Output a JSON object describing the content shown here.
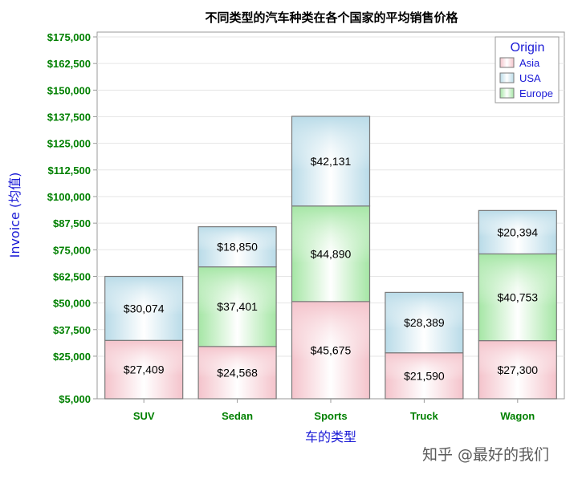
{
  "chart_data": {
    "type": "bar",
    "stacked": true,
    "title": "不同类型的汽车种类在各个国家的平均销售价格",
    "xlabel": "车的类型",
    "ylabel": "Invoice (均值)",
    "categories": [
      "SUV",
      "Sedan",
      "Sports",
      "Truck",
      "Wagon"
    ],
    "ylim": [
      5000,
      175000
    ],
    "yticks": [
      "$5,000",
      "$25,000",
      "$37,500",
      "$50,000",
      "$62,500",
      "$75,000",
      "$87,500",
      "$100,000",
      "$112,500",
      "$125,000",
      "$137,500",
      "$150,000",
      "$162,500",
      "$175,000"
    ],
    "ytick_values": [
      5000,
      25000,
      37500,
      50000,
      62500,
      75000,
      87500,
      100000,
      112500,
      125000,
      137500,
      150000,
      162500,
      175000
    ],
    "series": [
      {
        "name": "Asia",
        "values": [
          27409,
          24568,
          45675,
          21590,
          27300
        ],
        "labels": [
          "$27,409",
          "$24,568",
          "$45,675",
          "$21,590",
          "$27,300"
        ]
      },
      {
        "name": "Europe",
        "values": [
          null,
          37401,
          44890,
          null,
          40753
        ],
        "labels": [
          "",
          "$37,401",
          "$44,890",
          "",
          "$40,753"
        ]
      },
      {
        "name": "USA",
        "values": [
          30074,
          18850,
          42131,
          28389,
          20394
        ],
        "labels": [
          "$30,074",
          "$18,850",
          "$42,131",
          "$28,389",
          "$20,394"
        ]
      }
    ],
    "legend": {
      "title": "Origin",
      "position": "top-right",
      "entries": [
        "Asia",
        "USA",
        "Europe"
      ]
    },
    "colors": {
      "Asia": "#f4c3cb",
      "USA": "#b9dbe8",
      "Europe": "#a5e6a5"
    },
    "grid": true
  },
  "watermark": "知乎 @最好的我们"
}
